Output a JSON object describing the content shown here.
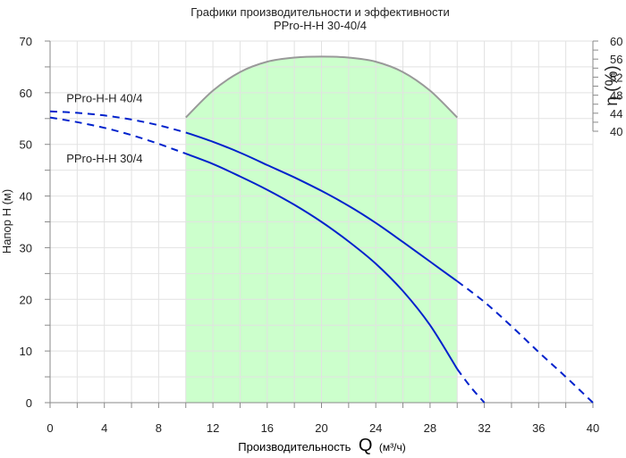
{
  "chart_data": {
    "type": "line",
    "title": "Графики производительности и эффективности",
    "subtitle": "PPro-H-H 30-40/4",
    "xlabel": "Производительность",
    "xlabel_symbol": "Q",
    "xlabel_unit": "(м³/ч)",
    "ylabel": "Напор Н (м)",
    "y2label": "η (%)",
    "xlim": [
      0,
      40
    ],
    "ylim": [
      0,
      70
    ],
    "y2lim": [
      40,
      60
    ],
    "x_ticks": [
      0,
      4,
      8,
      12,
      16,
      20,
      24,
      28,
      32,
      36,
      40
    ],
    "y_ticks": [
      0,
      10,
      20,
      30,
      40,
      50,
      60,
      70
    ],
    "y2_ticks": [
      40,
      44,
      48,
      52,
      56,
      60
    ],
    "grid": true,
    "operating_range": {
      "x": [
        10,
        30
      ],
      "color": "#ccffcc"
    },
    "efficiency_curve": {
      "color": "#999999",
      "x": [
        10,
        12,
        14,
        16,
        18,
        20,
        22,
        24,
        26,
        28,
        30
      ],
      "y": [
        55.2,
        60.4,
        64.0,
        66.0,
        66.8,
        67.0,
        66.8,
        66.0,
        64.0,
        60.4,
        55.2
      ]
    },
    "series": [
      {
        "name": "PPro-H-H 40/4",
        "color": "#0022cc",
        "dashed": {
          "x": [
            0,
            2,
            4,
            6,
            8,
            10
          ],
          "y": [
            56.4,
            56.1,
            55.6,
            54.8,
            53.7,
            52.3
          ]
        },
        "solid": {
          "x": [
            10,
            12,
            14,
            16,
            18,
            20,
            22,
            24,
            26,
            28,
            30
          ],
          "y": [
            52.3,
            50.5,
            48.4,
            46.0,
            43.6,
            41.0,
            38.1,
            34.8,
            31.1,
            27.3,
            23.5
          ]
        },
        "dashed_end": {
          "x": [
            30,
            32,
            34,
            36,
            38,
            40
          ],
          "y": [
            23.5,
            19.5,
            14.8,
            9.8,
            5.0,
            0.0
          ]
        }
      },
      {
        "name": "PPro-H-H 30/4",
        "color": "#0022cc",
        "dashed": {
          "x": [
            0,
            2,
            4,
            6,
            8,
            10
          ],
          "y": [
            55.2,
            54.3,
            53.2,
            51.8,
            50.1,
            48.2
          ]
        },
        "solid": {
          "x": [
            10,
            12,
            14,
            16,
            18,
            20,
            22,
            24,
            26,
            28,
            30
          ],
          "y": [
            48.2,
            46.2,
            43.8,
            41.2,
            38.3,
            35.0,
            31.2,
            26.9,
            21.6,
            15.0,
            6.5
          ]
        },
        "dashed_end": {
          "x": [
            30,
            31,
            32
          ],
          "y": [
            6.5,
            3.0,
            0.0
          ]
        }
      }
    ],
    "annotations": [
      {
        "text": "PPro-H-H 40/4",
        "x": 1.2,
        "y": 58.2
      },
      {
        "text": "PPro-H-H 30/4",
        "x": 1.2,
        "y": 46.5
      }
    ]
  }
}
